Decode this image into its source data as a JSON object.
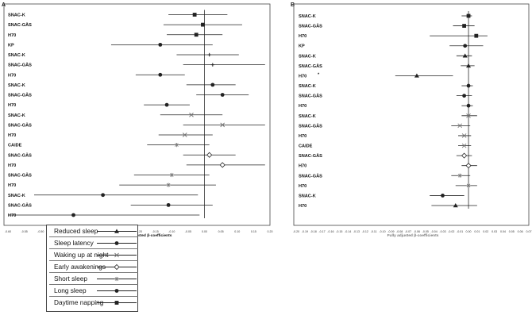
{
  "chart_data": [
    {
      "type": "forest",
      "panel": "A",
      "xlabel": "Fully adjusted β-coefficients",
      "xlim": [
        -0.6,
        0.2
      ],
      "xticks": [
        "-0.60",
        "-0.55",
        "-0.50",
        "-0.45",
        "-0.40",
        "-0.35",
        "-0.30",
        "-0.25",
        "-0.20",
        "-0.15",
        "-0.10",
        "-0.05",
        "0.00",
        "0.05",
        "0.10",
        "0.15",
        "0.20"
      ],
      "rows": [
        {
          "label": "SNAC-K",
          "symbol": "square",
          "est": -0.03,
          "lo": -0.11,
          "hi": 0.07
        },
        {
          "label": "SNAC-GÄS",
          "symbol": "square",
          "est": -0.005,
          "lo": -0.125,
          "hi": 0.115
        },
        {
          "label": "H70",
          "symbol": "square",
          "est": -0.025,
          "lo": -0.115,
          "hi": 0.055
        },
        {
          "label": "KP",
          "symbol": "circle",
          "est": -0.135,
          "lo": -0.285,
          "hi": 0.025
        },
        {
          "label": "SNAC-K",
          "symbol": "plus",
          "est": 0.015,
          "lo": -0.085,
          "hi": 0.105
        },
        {
          "label": "SNAC-GÄS",
          "symbol": "plus",
          "est": 0.025,
          "lo": -0.065,
          "hi": 0.185
        },
        {
          "label": "H70",
          "symbol": "circle",
          "est": -0.135,
          "lo": -0.21,
          "hi": -0.06
        },
        {
          "label": "SNAC-K",
          "symbol": "circle",
          "est": 0.025,
          "lo": -0.055,
          "hi": 0.095
        },
        {
          "label": "SNAC-GÄS",
          "symbol": "circle",
          "est": 0.055,
          "lo": -0.025,
          "hi": 0.135
        },
        {
          "label": "H70",
          "symbol": "circle",
          "est": -0.115,
          "lo": -0.185,
          "hi": -0.045
        },
        {
          "label": "SNAC-K",
          "symbol": "cross",
          "est": -0.04,
          "lo": -0.135,
          "hi": 0.055
        },
        {
          "label": "SNAC-GÄS",
          "symbol": "cross",
          "est": 0.055,
          "lo": -0.065,
          "hi": 0.185
        },
        {
          "label": "H70",
          "symbol": "cross",
          "est": -0.06,
          "lo": -0.14,
          "hi": 0.025
        },
        {
          "label": "CAIDE",
          "symbol": "star",
          "est": -0.085,
          "lo": -0.175,
          "hi": 0.015
        },
        {
          "label": "SNAC-GÄS",
          "symbol": "diamond",
          "est": 0.015,
          "lo": -0.065,
          "hi": 0.095
        },
        {
          "label": "H70",
          "symbol": "diamond",
          "est": 0.055,
          "lo": -0.055,
          "hi": 0.185
        },
        {
          "label": "SNAC-GÄS",
          "symbol": "star",
          "est": -0.1,
          "lo": -0.215,
          "hi": 0.015
        },
        {
          "label": "H70",
          "symbol": "star",
          "est": -0.11,
          "lo": -0.26,
          "hi": 0.035
        },
        {
          "label": "SNAC-K",
          "symbol": "circle",
          "est": -0.31,
          "lo": -0.52,
          "hi": -0.02
        },
        {
          "label": "SNAC-GÄS",
          "symbol": "circle",
          "est": -0.11,
          "lo": -0.225,
          "hi": 0.025
        },
        {
          "label": "H70",
          "symbol": "circle",
          "est": -0.4,
          "lo": -0.6,
          "hi": -0.015
        }
      ]
    },
    {
      "type": "forest",
      "panel": "B",
      "xlabel": "Fully adjusted β-coefficients",
      "xlim": [
        -0.2,
        0.07
      ],
      "xticks": [
        "-0.20",
        "-0.19",
        "-0.18",
        "-0.17",
        "-0.16",
        "-0.15",
        "-0.14",
        "-0.13",
        "-0.12",
        "-0.11",
        "-0.10",
        "-0.09",
        "-0.08",
        "-0.07",
        "-0.06",
        "-0.05",
        "-0.04",
        "-0.03",
        "-0.02",
        "-0.01",
        "0.00",
        "0.01",
        "0.02",
        "0.03",
        "0.04",
        "0.05",
        "0.06",
        "0.07"
      ],
      "rows": [
        {
          "label": "SNAC-K",
          "symbol": "square",
          "est": 0.0,
          "lo": -0.008,
          "hi": 0.004
        },
        {
          "label": "SNAC-GÄS",
          "symbol": "square",
          "est": -0.005,
          "lo": -0.018,
          "hi": 0.007
        },
        {
          "label": "H70",
          "symbol": "square",
          "est": 0.009,
          "lo": -0.045,
          "hi": 0.022
        },
        {
          "label": "KP",
          "symbol": "circle",
          "est": -0.004,
          "lo": -0.022,
          "hi": 0.017
        },
        {
          "label": "SNAC-K",
          "symbol": "triangle",
          "est": -0.004,
          "lo": -0.014,
          "hi": 0.004
        },
        {
          "label": "SNAC-GÄS",
          "symbol": "triangle",
          "est": 0.0,
          "lo": -0.009,
          "hi": 0.007
        },
        {
          "label": "H70",
          "symbol": "triangle",
          "est": -0.06,
          "lo": -0.085,
          "hi": -0.018,
          "note": "*"
        },
        {
          "label": "SNAC-K",
          "symbol": "circle",
          "est": 0.0,
          "lo": -0.008,
          "hi": 0.005
        },
        {
          "label": "SNAC-GÄS",
          "symbol": "circle",
          "est": -0.005,
          "lo": -0.014,
          "hi": 0.004
        },
        {
          "label": "H70",
          "symbol": "circle",
          "est": 0.0,
          "lo": -0.008,
          "hi": 0.005
        },
        {
          "label": "SNAC-K",
          "symbol": "cross",
          "est": 0.0,
          "lo": -0.008,
          "hi": 0.01
        },
        {
          "label": "SNAC-GÄS",
          "symbol": "cross",
          "est": -0.01,
          "lo": -0.02,
          "hi": 0.002
        },
        {
          "label": "H70",
          "symbol": "cross",
          "est": -0.005,
          "lo": -0.012,
          "hi": 0.003
        },
        {
          "label": "CAIDE",
          "symbol": "cross",
          "est": -0.005,
          "lo": -0.012,
          "hi": 0.003
        },
        {
          "label": "SNAC-GÄS",
          "symbol": "diamond",
          "est": -0.005,
          "lo": -0.014,
          "hi": 0.004
        },
        {
          "label": "H70",
          "symbol": "diamond",
          "est": 0.0,
          "lo": -0.008,
          "hi": 0.01
        },
        {
          "label": "SNAC-GÄS",
          "symbol": "star",
          "est": -0.01,
          "lo": -0.02,
          "hi": 0.002
        },
        {
          "label": "H70",
          "symbol": "star",
          "est": 0.0,
          "lo": -0.015,
          "hi": 0.01
        },
        {
          "label": "SNAC-K",
          "symbol": "circle",
          "est": -0.03,
          "lo": -0.045,
          "hi": -0.005
        },
        {
          "label": "H70",
          "symbol": "triangle",
          "est": -0.015,
          "lo": -0.043,
          "hi": 0.01
        }
      ]
    }
  ],
  "legend": {
    "items": [
      {
        "label": "Reduced sleep",
        "symbol": "triangle"
      },
      {
        "label": "Sleep latency",
        "symbol": "circle"
      },
      {
        "label": "Waking up at night",
        "symbol": "cross"
      },
      {
        "label": "Early awakenings",
        "symbol": "diamond"
      },
      {
        "label": "Short sleep",
        "symbol": "star"
      },
      {
        "label": "Long sleep",
        "symbol": "circle"
      },
      {
        "label": "Daytime napping",
        "symbol": "square"
      }
    ]
  },
  "colors": {
    "axis": "#444444",
    "zero": "#111111",
    "line": "#222222",
    "cross": "#777777"
  }
}
